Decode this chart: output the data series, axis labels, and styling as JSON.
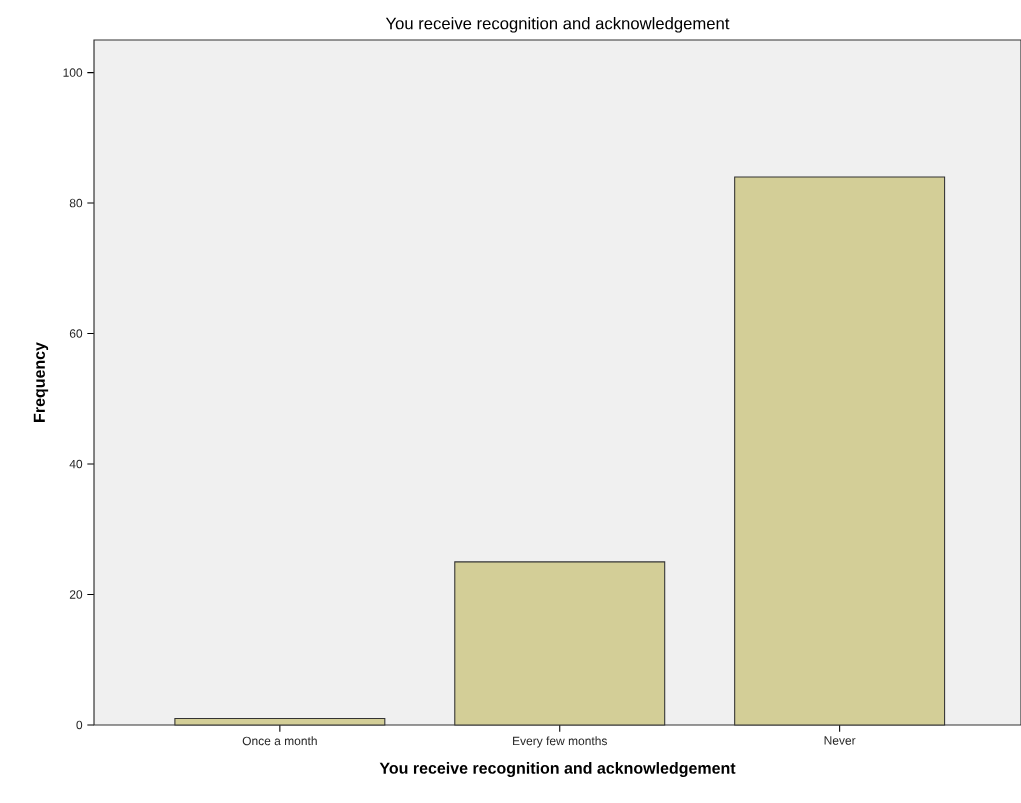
{
  "chart_data": {
    "type": "bar",
    "title": "You receive recognition and acknowledgement",
    "xlabel": "You receive recognition and acknowledgement",
    "ylabel": "Frequency",
    "categories": [
      "Once a month",
      "Every few months",
      "Never"
    ],
    "values": [
      1,
      25,
      84
    ],
    "color": "#d3ce97",
    "ylim": [
      0,
      105
    ],
    "yticks": [
      0,
      20,
      40,
      60,
      80,
      100
    ]
  }
}
